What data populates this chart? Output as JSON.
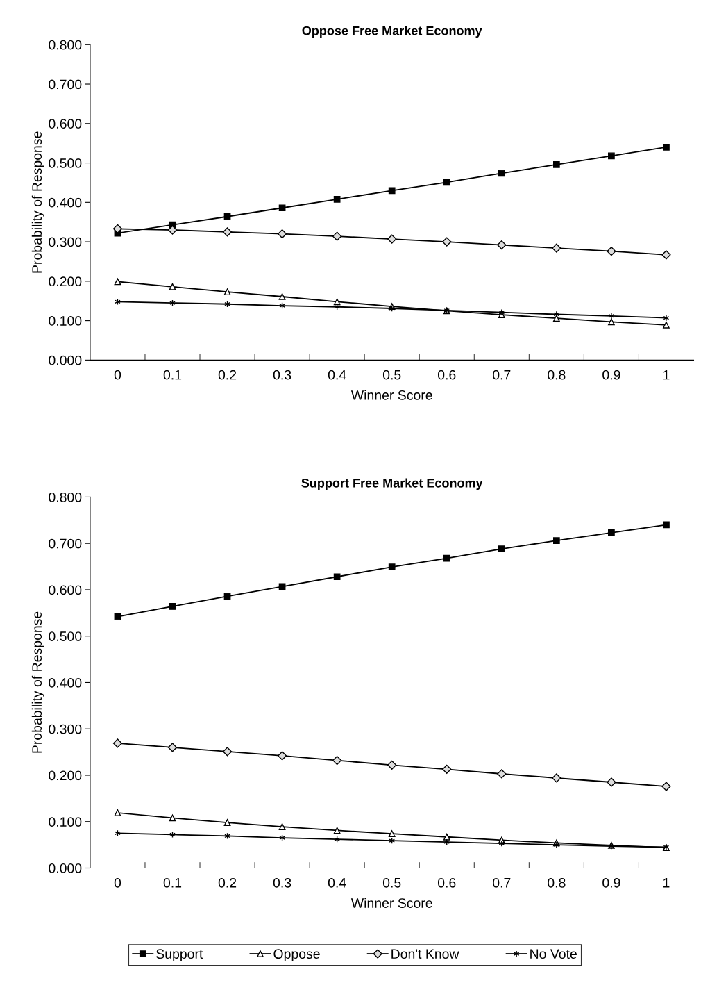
{
  "chart_data": [
    {
      "type": "line",
      "title": "Oppose Free Market Economy",
      "xlabel": "Winner Score",
      "ylabel": "Probability of Response",
      "categories": [
        "0",
        "0.1",
        "0.2",
        "0.3",
        "0.4",
        "0.5",
        "0.6",
        "0.7",
        "0.8",
        "0.9",
        "1"
      ],
      "ylim": [
        0,
        0.8
      ],
      "yticks": [
        {
          "value": 0,
          "label": "0.000"
        },
        {
          "value": 0.1,
          "label": "0.100"
        },
        {
          "value": 0.2,
          "label": "0.200"
        },
        {
          "value": 0.3,
          "label": "0.300"
        },
        {
          "value": 0.4,
          "label": "0.400"
        },
        {
          "value": 0.5,
          "label": "0.500"
        },
        {
          "value": 0.6,
          "label": "0.600"
        },
        {
          "value": 0.7,
          "label": "0.700"
        },
        {
          "value": 0.8,
          "label": "0.800"
        }
      ],
      "grid": false,
      "legend": false,
      "line_style": "solid",
      "series": [
        {
          "color": "#000000",
          "marker": "square",
          "values": [
            0.322,
            0.343,
            0.364,
            0.386,
            0.408,
            0.43,
            0.451,
            0.474,
            0.496,
            0.518,
            0.54
          ]
        },
        {
          "color": "#000000",
          "marker": "triangle",
          "values": [
            0.199,
            0.186,
            0.173,
            0.161,
            0.148,
            0.136,
            0.125,
            0.115,
            0.106,
            0.097,
            0.089
          ]
        },
        {
          "color": "#000000",
          "marker": "diamond",
          "values": [
            0.333,
            0.33,
            0.325,
            0.32,
            0.314,
            0.307,
            0.3,
            0.292,
            0.284,
            0.276,
            0.267
          ]
        },
        {
          "color": "#000000",
          "marker": "cross",
          "values": [
            0.148,
            0.145,
            0.142,
            0.138,
            0.135,
            0.131,
            0.126,
            0.121,
            0.116,
            0.112,
            0.107
          ]
        }
      ]
    },
    {
      "type": "line",
      "title": "Support Free Market Economy",
      "xlabel": "Winner Score",
      "ylabel": "Probability of Response",
      "categories": [
        "0",
        "0.1",
        "0.2",
        "0.3",
        "0.4",
        "0.5",
        "0.6",
        "0.7",
        "0.8",
        "0.9",
        "1"
      ],
      "ylim": [
        0,
        0.8
      ],
      "yticks": [
        {
          "value": 0,
          "label": "0.000"
        },
        {
          "value": 0.1,
          "label": "0.100"
        },
        {
          "value": 0.2,
          "label": "0.200"
        },
        {
          "value": 0.3,
          "label": "0.300"
        },
        {
          "value": 0.4,
          "label": "0.400"
        },
        {
          "value": 0.5,
          "label": "0.500"
        },
        {
          "value": 0.6,
          "label": "0.600"
        },
        {
          "value": 0.7,
          "label": "0.700"
        },
        {
          "value": 0.8,
          "label": "0.800"
        }
      ],
      "grid": false,
      "legend": "bottom",
      "line_style": "solid",
      "series": [
        {
          "name": "Support",
          "color": "#000000",
          "marker": "square",
          "values": [
            0.542,
            0.564,
            0.586,
            0.607,
            0.628,
            0.649,
            0.668,
            0.688,
            0.706,
            0.723,
            0.74
          ]
        },
        {
          "name": "Oppose",
          "color": "#000000",
          "marker": "triangle",
          "values": [
            0.119,
            0.108,
            0.098,
            0.089,
            0.081,
            0.074,
            0.067,
            0.06,
            0.054,
            0.049,
            0.044
          ]
        },
        {
          "name": "Don't Know",
          "color": "#000000",
          "marker": "diamond",
          "values": [
            0.269,
            0.26,
            0.251,
            0.242,
            0.232,
            0.222,
            0.213,
            0.203,
            0.194,
            0.185,
            0.176
          ]
        },
        {
          "name": "No Vote",
          "color": "#000000",
          "marker": "cross",
          "values": [
            0.075,
            0.072,
            0.069,
            0.065,
            0.062,
            0.059,
            0.056,
            0.053,
            0.05,
            0.047,
            0.045
          ]
        }
      ]
    }
  ]
}
